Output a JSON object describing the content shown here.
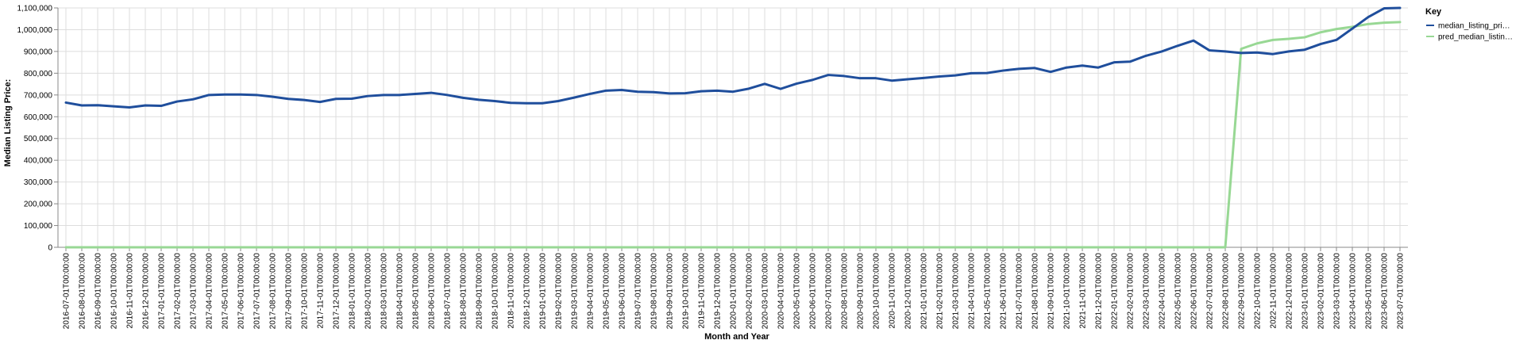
{
  "chart_data": {
    "type": "line",
    "xlabel": "Month and Year",
    "ylabel": "Median Listing Price:",
    "ylim": [
      0,
      1100000
    ],
    "yticks": [
      "0",
      "100,000",
      "200,000",
      "300,000",
      "400,000",
      "500,000",
      "600,000",
      "700,000",
      "800,000",
      "900,000",
      "1,000,000",
      "1,100,000"
    ],
    "grid": true,
    "legend_position": "right",
    "legend_title": "Key",
    "x": [
      "2016-07-01T00:00:00",
      "2016-08-01T00:00:00",
      "2016-09-01T00:00:00",
      "2016-10-01T00:00:00",
      "2016-11-01T00:00:00",
      "2016-12-01T00:00:00",
      "2017-01-01T00:00:00",
      "2017-02-01T00:00:00",
      "2017-03-01T00:00:00",
      "2017-04-01T00:00:00",
      "2017-05-01T00:00:00",
      "2017-06-01T00:00:00",
      "2017-07-01T00:00:00",
      "2017-08-01T00:00:00",
      "2017-09-01T00:00:00",
      "2017-10-01T00:00:00",
      "2017-11-01T00:00:00",
      "2017-12-01T00:00:00",
      "2018-01-01T00:00:00",
      "2018-02-01T00:00:00",
      "2018-03-01T00:00:00",
      "2018-04-01T00:00:00",
      "2018-05-01T00:00:00",
      "2018-06-01T00:00:00",
      "2018-07-01T00:00:00",
      "2018-08-01T00:00:00",
      "2018-09-01T00:00:00",
      "2018-10-01T00:00:00",
      "2018-11-01T00:00:00",
      "2018-12-01T00:00:00",
      "2019-01-01T00:00:00",
      "2019-02-01T00:00:00",
      "2019-03-01T00:00:00",
      "2019-04-01T00:00:00",
      "2019-05-01T00:00:00",
      "2019-06-01T00:00:00",
      "2019-07-01T00:00:00",
      "2019-08-01T00:00:00",
      "2019-09-01T00:00:00",
      "2019-10-01T00:00:00",
      "2019-11-01T00:00:00",
      "2019-12-01T00:00:00",
      "2020-01-01T00:00:00",
      "2020-02-01T00:00:00",
      "2020-03-01T00:00:00",
      "2020-04-01T00:00:00",
      "2020-05-01T00:00:00",
      "2020-06-01T00:00:00",
      "2020-07-01T00:00:00",
      "2020-08-01T00:00:00",
      "2020-09-01T00:00:00",
      "2020-10-01T00:00:00",
      "2020-11-01T00:00:00",
      "2020-12-01T00:00:00",
      "2021-01-01T00:00:00",
      "2021-02-01T00:00:00",
      "2021-03-01T00:00:00",
      "2021-04-01T00:00:00",
      "2021-05-01T00:00:00",
      "2021-06-01T00:00:00",
      "2021-07-01T00:00:00",
      "2021-08-01T00:00:00",
      "2021-09-01T00:00:00",
      "2021-10-01T00:00:00",
      "2021-11-01T00:00:00",
      "2021-12-01T00:00:00",
      "2022-01-01T00:00:00",
      "2022-02-01T00:00:00",
      "2022-03-01T00:00:00",
      "2022-04-01T00:00:00",
      "2022-05-01T00:00:00",
      "2022-06-01T00:00:00",
      "2022-07-01T00:00:00",
      "2022-08-01T00:00:00",
      "2022-09-01T00:00:00",
      "2022-10-01T00:00:00",
      "2022-11-01T00:00:00",
      "2022-12-01T00:00:00",
      "2023-01-01T00:00:00",
      "2023-02-01T00:00:00",
      "2023-03-01T00:00:00",
      "2023-04-01T00:00:00",
      "2023-05-01T00:00:00",
      "2023-06-01T00:00:00",
      "2023-07-01T00:00:00"
    ],
    "series": [
      {
        "name": "median_listing_pri…",
        "color": "#1f4e9c",
        "values": [
          665000,
          652000,
          653000,
          648000,
          643000,
          652000,
          650000,
          670000,
          680000,
          700000,
          702000,
          702000,
          700000,
          692000,
          682000,
          677000,
          668000,
          682000,
          683000,
          695000,
          700000,
          700000,
          705000,
          710000,
          700000,
          687000,
          678000,
          672000,
          664000,
          662000,
          662000,
          672000,
          688000,
          705000,
          720000,
          723000,
          715000,
          713000,
          707000,
          708000,
          717000,
          720000,
          715000,
          729000,
          751000,
          728000,
          752000,
          769000,
          792000,
          787000,
          777000,
          777000,
          766000,
          772000,
          778000,
          785000,
          790000,
          800000,
          801000,
          812000,
          820000,
          824000,
          806000,
          826000,
          835000,
          826000,
          850000,
          853000,
          880000,
          900000,
          926000,
          950000,
          905000,
          900000,
          893000,
          895000,
          888000,
          900000,
          908000,
          934000,
          953000,
          1005000,
          1058000,
          1098000,
          1100000
        ]
      },
      {
        "name": "pred_median_listin…",
        "color": "#98d894",
        "values": [
          0,
          0,
          0,
          0,
          0,
          0,
          0,
          0,
          0,
          0,
          0,
          0,
          0,
          0,
          0,
          0,
          0,
          0,
          0,
          0,
          0,
          0,
          0,
          0,
          0,
          0,
          0,
          0,
          0,
          0,
          0,
          0,
          0,
          0,
          0,
          0,
          0,
          0,
          0,
          0,
          0,
          0,
          0,
          0,
          0,
          0,
          0,
          0,
          0,
          0,
          0,
          0,
          0,
          0,
          0,
          0,
          0,
          0,
          0,
          0,
          0,
          0,
          0,
          0,
          0,
          0,
          0,
          0,
          0,
          0,
          0,
          0,
          0,
          0,
          912000,
          937000,
          953000,
          958000,
          965000,
          988000,
          1003000,
          1013000,
          1026000,
          1032000,
          1035000
        ]
      }
    ]
  }
}
